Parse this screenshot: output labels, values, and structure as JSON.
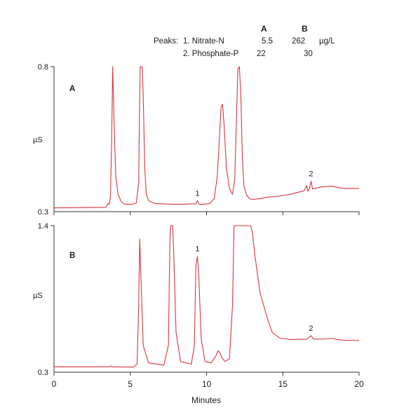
{
  "legend": {
    "peaks_label": "Peaks:",
    "col_a": "A",
    "col_b": "B",
    "rows": [
      {
        "name": "1. Nitrate-N",
        "a": "5.5",
        "b": "262",
        "unit": "µg/L"
      },
      {
        "name": "2. Phosphate-P",
        "a": "22",
        "b": "30",
        "unit": ""
      }
    ]
  },
  "colors": {
    "trace": "#d9363e",
    "axis": "#333333"
  },
  "chart_data": [
    {
      "type": "line",
      "panel_label": "A",
      "ylabel": "µS",
      "ylim": [
        0.3,
        0.8
      ],
      "y_tick_labels": [
        "0.8",
        "0.3"
      ],
      "peak_labels": [
        {
          "text": "1",
          "x": 9.4
        },
        {
          "text": "2",
          "x": 16.85
        }
      ],
      "series": [
        {
          "x": [
            0.0,
            3.4,
            3.55,
            3.62,
            3.7,
            3.78,
            3.85,
            3.93,
            4.05,
            4.2,
            4.4,
            4.6,
            5.1,
            5.4,
            5.55,
            5.62,
            5.65,
            5.78,
            5.85,
            5.95,
            6.05,
            6.2,
            6.6,
            8.0,
            9.3,
            9.4,
            9.5,
            9.7,
            10.2,
            10.5,
            10.7,
            10.85,
            10.95,
            11.05,
            11.15,
            11.3,
            11.5,
            11.7,
            11.85,
            11.95,
            12.05,
            12.15,
            12.25,
            12.35,
            12.45,
            12.6,
            12.8,
            13.0,
            13.5,
            14.0,
            14.5,
            15.5,
            16.4,
            16.55,
            16.65,
            16.75,
            16.85,
            16.95,
            17.1,
            17.5,
            18.2,
            19.0,
            20.0
          ],
          "y": [
            0.313,
            0.315,
            0.328,
            0.325,
            0.35,
            0.55,
            0.8,
            0.62,
            0.42,
            0.36,
            0.335,
            0.326,
            0.325,
            0.33,
            0.4,
            0.7,
            0.8,
            0.8,
            0.7,
            0.45,
            0.36,
            0.338,
            0.328,
            0.325,
            0.327,
            0.338,
            0.326,
            0.325,
            0.328,
            0.345,
            0.42,
            0.56,
            0.66,
            0.67,
            0.6,
            0.45,
            0.38,
            0.36,
            0.41,
            0.6,
            0.79,
            0.8,
            0.7,
            0.48,
            0.39,
            0.36,
            0.345,
            0.342,
            0.345,
            0.35,
            0.352,
            0.36,
            0.372,
            0.39,
            0.37,
            0.38,
            0.405,
            0.378,
            0.38,
            0.385,
            0.388,
            0.38,
            0.38
          ]
        }
      ]
    },
    {
      "type": "line",
      "panel_label": "B",
      "ylabel": "µS",
      "ylim": [
        0.3,
        1.4
      ],
      "y_tick_labels": [
        "1.4",
        "0.3"
      ],
      "x_tick_labels": [
        "0",
        "5",
        "10",
        "15",
        "20"
      ],
      "xlim": [
        0,
        20
      ],
      "xlabel": "Minutes",
      "peak_labels": [
        {
          "text": "1",
          "x": 9.4
        },
        {
          "text": "2",
          "x": 16.85
        }
      ],
      "series": [
        {
          "x": [
            0.0,
            3.6,
            3.7,
            3.8,
            5.2,
            5.45,
            5.55,
            5.62,
            5.7,
            5.85,
            6.2,
            7.2,
            7.5,
            7.6,
            7.65,
            7.78,
            7.85,
            8.0,
            8.3,
            9.0,
            9.2,
            9.3,
            9.4,
            9.5,
            9.65,
            9.9,
            10.3,
            10.6,
            10.75,
            10.85,
            11.0,
            11.2,
            11.5,
            11.7,
            11.8,
            11.85,
            12.9,
            13.0,
            13.2,
            13.5,
            14.0,
            14.3,
            14.8,
            15.5,
            16.6,
            16.75,
            16.85,
            17.0,
            17.3,
            18.0,
            18.2,
            18.5,
            19.0,
            20.0
          ],
          "y": [
            0.34,
            0.34,
            0.348,
            0.34,
            0.338,
            0.36,
            0.8,
            1.3,
            1.0,
            0.5,
            0.37,
            0.352,
            0.5,
            1.3,
            1.4,
            1.4,
            1.2,
            0.6,
            0.38,
            0.36,
            0.5,
            1.1,
            1.17,
            1.0,
            0.55,
            0.38,
            0.37,
            0.42,
            0.46,
            0.45,
            0.41,
            0.38,
            0.4,
            0.8,
            1.4,
            1.4,
            1.4,
            1.35,
            1.15,
            0.9,
            0.7,
            0.6,
            0.555,
            0.545,
            0.548,
            0.565,
            0.575,
            0.55,
            0.548,
            0.55,
            0.555,
            0.545,
            0.54,
            0.538
          ]
        }
      ]
    }
  ]
}
